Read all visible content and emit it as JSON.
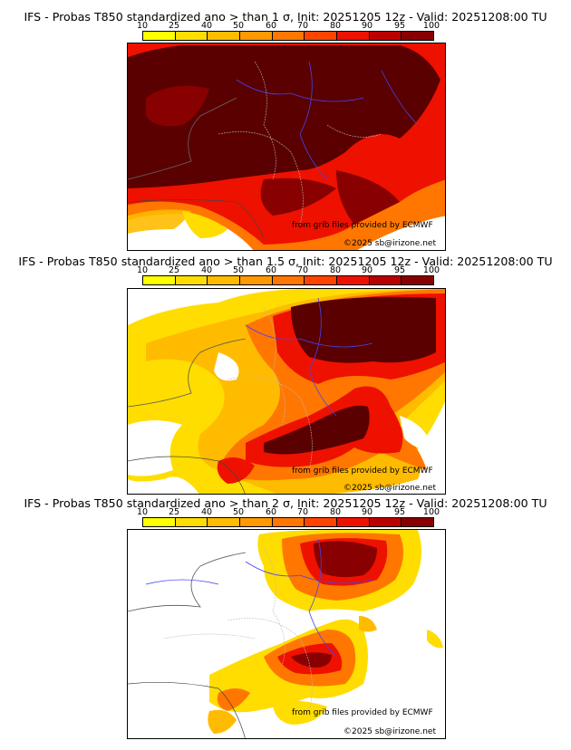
{
  "colorbar": {
    "ticks": [
      "10",
      "25",
      "40",
      "50",
      "60",
      "70",
      "80",
      "90",
      "95",
      "100"
    ],
    "colors": [
      "#ffff00",
      "#ffdd00",
      "#ffbb00",
      "#ff9900",
      "#ff7700",
      "#ff4400",
      "#ee1100",
      "#bb0000",
      "#880000",
      "#5a0000"
    ]
  },
  "panels": [
    {
      "title": "IFS - Probas T850  standardized ano > than 1 σ, Init: 20251205 12z - Valid: 20251208:00 TU",
      "credit_line1": "from grib files provided by ECMWF",
      "credit_line2": "©2025 sb@irizone.net"
    },
    {
      "title": "IFS - Probas T850  standardized ano > than 1.5 σ, Init: 20251205 12z - Valid: 20251208:00 TU",
      "credit_line1": "from grib files provided by ECMWF",
      "credit_line2": "©2025 sb@irizone.net"
    },
    {
      "title": "IFS - Probas T850  standardized ano > than 2 σ, Init: 20251205 12z - Valid: 20251208:00 TU",
      "credit_line1": "from grib files provided by ECMWF",
      "credit_line2": "©2025 sb@irizone.net"
    }
  ]
}
